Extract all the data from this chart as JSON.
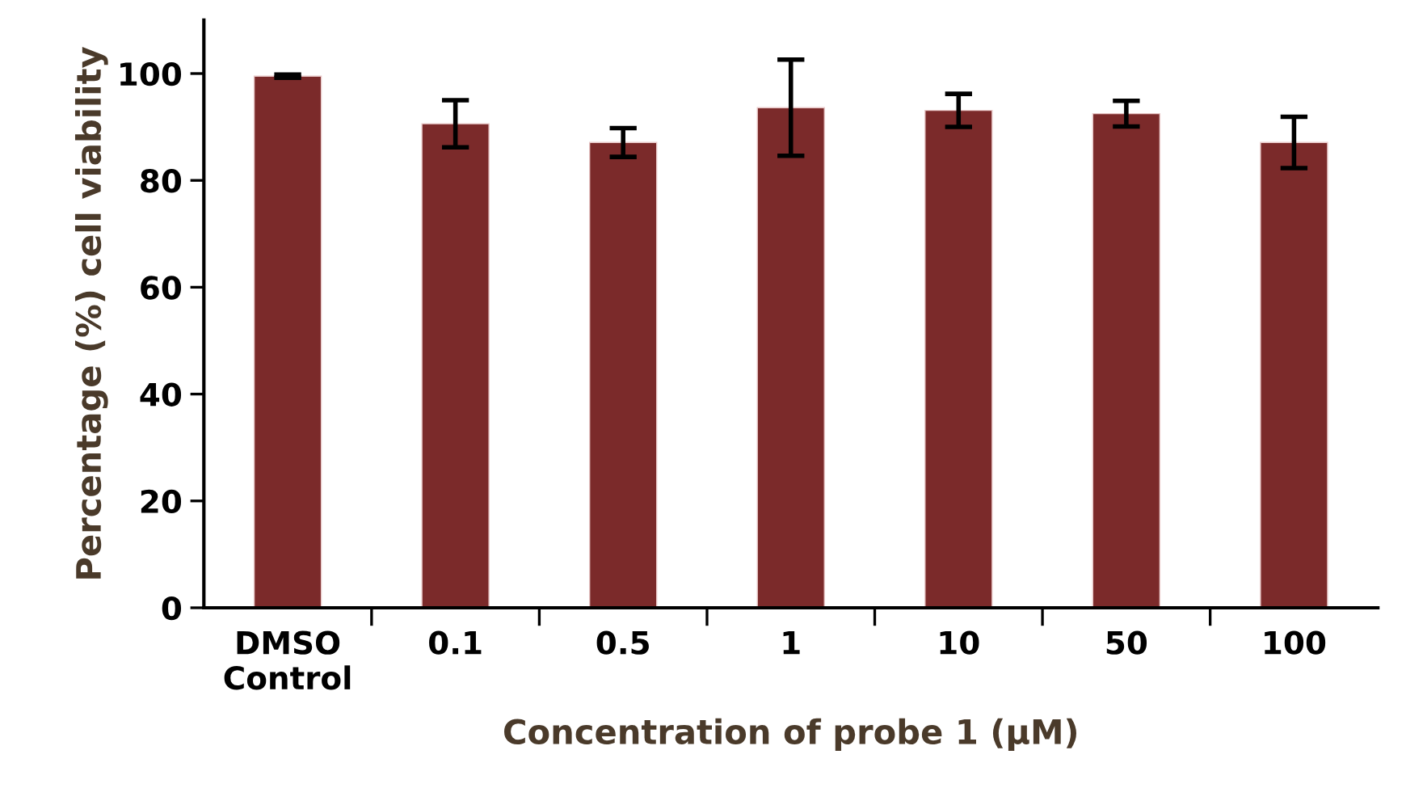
{
  "chart_data": {
    "type": "bar",
    "xlabel": "Concentration of probe 1 (μM)",
    "ylabel": "Percentage (%) cell viability",
    "categories": [
      "DMSO\nControl",
      "0.1",
      "0.5",
      "1",
      "10",
      "50",
      "100"
    ],
    "series": [
      {
        "color": "#7b2a2a",
        "values": [
          99.5,
          90.6,
          87.1,
          93.6,
          93.1,
          92.5,
          87.1
        ],
        "errors": [
          0.3,
          4.4,
          2.7,
          9,
          3.1,
          2.4,
          4.8
        ]
      }
    ],
    "ylim": [
      0,
      110
    ],
    "yticks": [
      0,
      20,
      40,
      60,
      80,
      100
    ],
    "grid": false,
    "legend": false
  }
}
